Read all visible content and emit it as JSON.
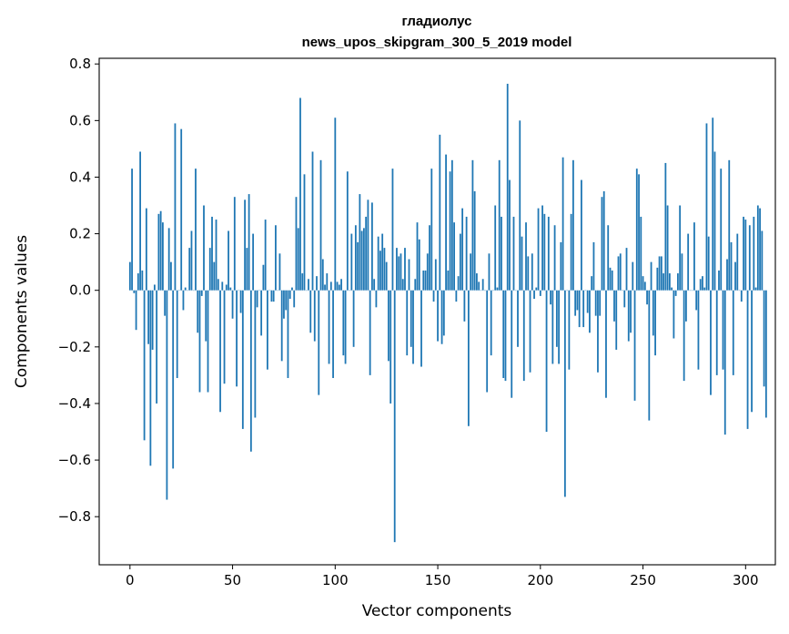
{
  "chart_data": {
    "type": "bar",
    "title": [
      "гладиолус",
      "news_upos_skipgram_300_5_2019 model"
    ],
    "xlabel": "Vector components",
    "ylabel": "Components values",
    "xlim": [
      -15,
      314.5
    ],
    "ylim": [
      -0.97,
      0.82
    ],
    "xticks": [
      0,
      50,
      100,
      150,
      200,
      250,
      300
    ],
    "yticks": [
      -0.8,
      -0.6,
      -0.4,
      -0.2,
      0.0,
      0.2,
      0.4,
      0.6,
      0.8
    ],
    "ytick_labels": [
      "−0.8",
      "−0.6",
      "−0.4",
      "−0.2",
      "0.0",
      "0.2",
      "0.4",
      "0.6",
      "0.8"
    ],
    "grid": false,
    "color": "#1f77b4",
    "values": [
      0.1,
      0.43,
      -0.01,
      -0.14,
      0.06,
      0.49,
      0.07,
      -0.53,
      0.29,
      -0.19,
      -0.62,
      -0.21,
      0.02,
      -0.4,
      0.27,
      0.28,
      0.24,
      -0.09,
      -0.74,
      0.22,
      0.1,
      -0.63,
      0.59,
      -0.31,
      0.0,
      0.57,
      -0.07,
      0.01,
      0.0,
      0.15,
      0.21,
      0.0,
      0.43,
      -0.15,
      -0.36,
      -0.02,
      0.3,
      -0.18,
      -0.36,
      0.15,
      0.26,
      0.1,
      0.25,
      0.04,
      -0.43,
      0.03,
      -0.33,
      0.02,
      0.21,
      0.01,
      -0.1,
      0.33,
      -0.34,
      0.0,
      -0.08,
      -0.49,
      0.32,
      0.15,
      0.34,
      -0.57,
      0.2,
      -0.45,
      -0.06,
      0.0,
      -0.16,
      0.09,
      0.25,
      -0.28,
      0.0,
      -0.04,
      -0.04,
      0.23,
      0.0,
      0.13,
      -0.25,
      -0.1,
      -0.07,
      -0.31,
      -0.03,
      0.01,
      -0.06,
      0.33,
      0.22,
      0.68,
      0.06,
      0.41,
      0.0,
      0.04,
      -0.15,
      0.49,
      -0.18,
      0.05,
      -0.37,
      0.46,
      0.11,
      0.02,
      0.06,
      -0.26,
      0.03,
      -0.31,
      0.61,
      0.03,
      0.02,
      0.04,
      -0.23,
      -0.26,
      0.42,
      0.0,
      0.2,
      -0.2,
      0.23,
      0.17,
      0.34,
      0.21,
      0.22,
      0.26,
      0.32,
      -0.3,
      0.31,
      0.04,
      -0.06,
      0.19,
      0.14,
      0.2,
      0.15,
      0.1,
      -0.25,
      -0.4,
      0.43,
      -0.89,
      0.15,
      0.12,
      0.13,
      0.04,
      0.15,
      -0.23,
      0.11,
      -0.2,
      -0.26,
      0.04,
      0.24,
      0.18,
      -0.27,
      0.07,
      0.07,
      0.13,
      0.23,
      0.43,
      -0.04,
      0.11,
      -0.18,
      0.55,
      -0.19,
      -0.16,
      0.48,
      0.07,
      0.42,
      0.46,
      0.24,
      -0.04,
      0.05,
      0.2,
      0.29,
      -0.11,
      0.26,
      -0.48,
      0.13,
      0.46,
      0.35,
      0.06,
      0.03,
      0.0,
      0.04,
      0.0,
      -0.36,
      0.13,
      -0.23,
      0.0,
      0.3,
      0.01,
      0.46,
      0.26,
      -0.31,
      -0.32,
      0.73,
      0.39,
      -0.38,
      0.26,
      0.0,
      -0.2,
      0.6,
      0.19,
      -0.32,
      0.24,
      0.12,
      -0.29,
      0.13,
      -0.03,
      0.01,
      0.29,
      -0.02,
      0.3,
      0.27,
      -0.5,
      0.26,
      -0.05,
      -0.26,
      0.23,
      -0.2,
      -0.26,
      0.17,
      0.47,
      -0.73,
      0.0,
      -0.28,
      0.27,
      0.46,
      -0.09,
      -0.07,
      -0.13,
      0.39,
      -0.13,
      0.0,
      -0.08,
      -0.15,
      0.05,
      0.17,
      -0.09,
      -0.29,
      -0.09,
      0.33,
      0.35,
      -0.38,
      0.23,
      0.08,
      0.07,
      -0.11,
      -0.21,
      0.12,
      0.13,
      0.0,
      -0.06,
      0.15,
      -0.18,
      -0.15,
      0.1,
      -0.39,
      0.43,
      0.41,
      0.26,
      0.05,
      0.03,
      -0.05,
      -0.46,
      0.1,
      -0.16,
      -0.23,
      0.08,
      0.12,
      0.12,
      0.06,
      0.45,
      0.3,
      0.06,
      0.01,
      -0.17,
      -0.02,
      0.06,
      0.3,
      0.13,
      -0.32,
      -0.11,
      0.2,
      0.0,
      0.0,
      0.24,
      -0.07,
      -0.28,
      0.04,
      0.05,
      0.01,
      0.59,
      0.19,
      -0.37,
      0.61,
      0.49,
      -0.3,
      0.07,
      0.43,
      -0.28,
      -0.51,
      0.11,
      0.46,
      0.17,
      -0.3,
      0.1,
      0.2,
      0.0,
      -0.04,
      0.26,
      0.25,
      -0.49,
      0.23,
      -0.43,
      0.26,
      0.01,
      0.3,
      0.29,
      0.21,
      -0.34,
      -0.45
    ]
  }
}
